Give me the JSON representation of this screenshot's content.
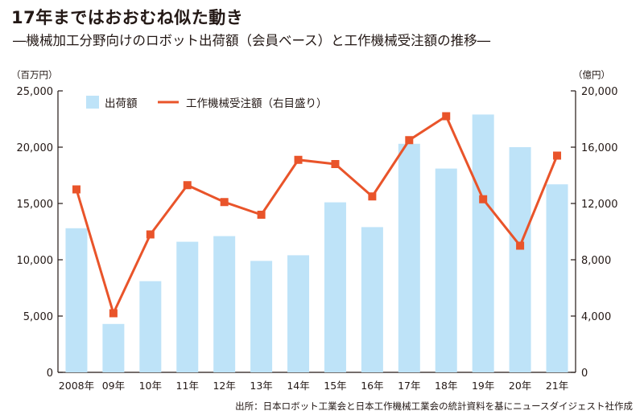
{
  "title": "17年まではおおむね似た動き",
  "subtitle": "―機械加工分野向けのロボット出荷額（会員ベース）と工作機械受注額の推移―",
  "source": "出所：日本ロボット工業会と日本工作機械工業会の統計資料を基にニュースダイジェスト社作成",
  "colors": {
    "bar": "#bee3f8",
    "line": "#e9542a",
    "axis": "#231815"
  },
  "chart_data": {
    "type": "bar+line",
    "categories": [
      "2008年",
      "09年",
      "10年",
      "11年",
      "12年",
      "13年",
      "14年",
      "15年",
      "16年",
      "17年",
      "18年",
      "19年",
      "20年",
      "21年"
    ],
    "left_axis": {
      "unit": "（百万円）",
      "ylim": [
        0,
        25000
      ],
      "ticks": [
        "0",
        "5,000",
        "10,000",
        "15,000",
        "20,000",
        "25,000"
      ]
    },
    "right_axis": {
      "unit": "（億円）",
      "ylim": [
        0,
        20000
      ],
      "ticks": [
        "0",
        "4,000",
        "8,000",
        "12,000",
        "16,000",
        "20,000"
      ]
    },
    "series": [
      {
        "name": "出荷額",
        "type": "bar",
        "axis": "left",
        "values": [
          12800,
          4300,
          8100,
          11600,
          12100,
          9900,
          10400,
          15100,
          12900,
          20300,
          18100,
          22900,
          20000,
          16700
        ]
      },
      {
        "name": "工作機械受注額（右目盛り）",
        "type": "line",
        "axis": "right",
        "values": [
          13000,
          4200,
          9800,
          13300,
          12100,
          11200,
          15100,
          14800,
          12500,
          16500,
          18200,
          12300,
          9000,
          15400
        ]
      }
    ],
    "legend": "top-left",
    "grid": false
  }
}
